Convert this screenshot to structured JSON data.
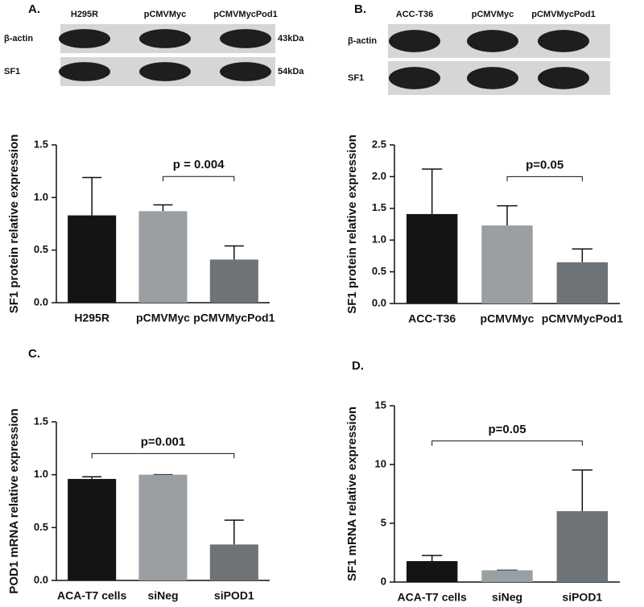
{
  "chart_data": [
    {
      "type": "bar",
      "panel_label": "A.",
      "ylabel": "SF1 protein relative expression",
      "blot": {
        "lanes": [
          "H295R",
          "pCMVMyc",
          "pCMVMycPod1"
        ],
        "rows": [
          "β-actin",
          "SF1"
        ],
        "sizes": [
          "43kDa",
          "54kDa"
        ]
      },
      "categories": [
        "H295R",
        "pCMVMyc",
        "pCMVMycPod1"
      ],
      "values": [
        0.83,
        0.87,
        0.41
      ],
      "errors": [
        0.36,
        0.06,
        0.13
      ],
      "colors": [
        "#141414",
        "#9a9fa3",
        "#6d7377"
      ],
      "ylim": [
        0,
        1.5
      ],
      "yticks": [
        {
          "value": 0,
          "label": "0.0"
        },
        0.5,
        {
          "value": 1,
          "label": "1.0"
        },
        1.5
      ],
      "annotation": "p = 0.004",
      "comparison": [
        "pCMVMyc",
        "pCMVMycPod1"
      ]
    },
    {
      "type": "bar",
      "panel_label": "B.",
      "ylabel": "SF1 protein relative expression",
      "blot": {
        "lanes": [
          "ACC-T36",
          "pCMVMyc",
          "pCMVMycPod1"
        ],
        "rows": [
          "β-actin",
          "SF1"
        ]
      },
      "categories": [
        "ACC-T36",
        "pCMVMyc",
        "pCMVMycPod1"
      ],
      "values": [
        1.41,
        1.23,
        0.65
      ],
      "errors": [
        0.71,
        0.31,
        0.21
      ],
      "colors": [
        "#141414",
        "#9a9fa3",
        "#6d7377"
      ],
      "ylim": [
        0,
        2.5
      ],
      "yticks": [
        {
          "value": 0,
          "label": "0.0"
        },
        0.5,
        {
          "value": 1,
          "label": "1.0"
        },
        1.5,
        {
          "value": 2,
          "label": "2.0"
        },
        2.5
      ],
      "annotation": "p=0.05",
      "comparison": [
        "pCMVMyc",
        "pCMVMycPod1"
      ]
    },
    {
      "type": "bar",
      "panel_label": "C.",
      "ylabel": "POD1 mRNA relative expression",
      "categories": [
        "ACA-T7 cells",
        "siNeg",
        "siPOD1"
      ],
      "values": [
        0.96,
        1,
        0.34
      ],
      "errors": [
        0.02,
        0,
        0.23
      ],
      "colors": [
        "#141414",
        "#9a9fa3",
        "#6d7377"
      ],
      "ylim": [
        0,
        1.5
      ],
      "yticks": [
        {
          "value": 0,
          "label": "0.0"
        },
        0.5,
        {
          "value": 1,
          "label": "1.0"
        },
        1.5
      ],
      "annotation": "p=0.001",
      "comparison": [
        "ACA-T7 cells",
        "siPOD1"
      ]
    },
    {
      "type": "bar",
      "panel_label": "D.",
      "ylabel": "SF1 mRNA relative expression",
      "categories": [
        "ACA-T7 cells",
        "siNeg",
        "siPOD1"
      ],
      "values": [
        1.78,
        1,
        6.03
      ],
      "errors": [
        0.48,
        0,
        3.5
      ],
      "colors": [
        "#141414",
        "#9a9fa3",
        "#6d7377"
      ],
      "ylim": [
        0,
        15
      ],
      "yticks": [
        0,
        5,
        10,
        15
      ],
      "annotation": "p=0.05",
      "comparison": [
        "ACA-T7 cells",
        "siPOD1"
      ]
    }
  ]
}
